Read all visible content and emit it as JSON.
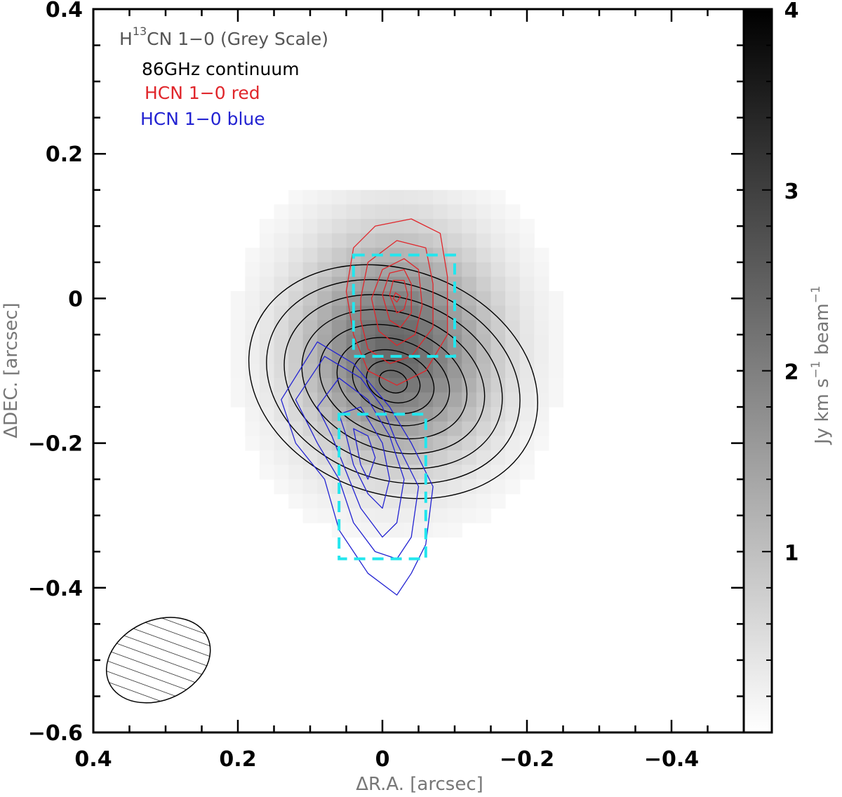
{
  "chart_data": {
    "type": "heatmap",
    "xlabel": "ΔR.A. [arcsec]",
    "ylabel": "ΔDEC. [arcsec]",
    "xlim": [
      0.4,
      -0.5
    ],
    "ylim": [
      -0.6,
      0.4
    ],
    "x_ticks": [
      0.4,
      0.2,
      0,
      -0.2,
      -0.4
    ],
    "x_tick_labels": [
      "0.4",
      "0.2",
      "0",
      "−0.2",
      "−0.4"
    ],
    "y_ticks": [
      0.4,
      0.2,
      0,
      -0.2,
      -0.4,
      -0.6
    ],
    "y_tick_labels": [
      "0.4",
      "0.2",
      "0",
      "−0.2",
      "−0.4",
      "−0.6"
    ],
    "legend": {
      "placement": "top-left",
      "entries": [
        {
          "label_main": "H",
          "label_sup": "13",
          "label_rest": "CN 1−0 (Grey Scale)",
          "color": "#555555"
        },
        {
          "label": "86GHz continuum",
          "color": "#000000"
        },
        {
          "label": "HCN 1−0 red",
          "color": "#e0262b"
        },
        {
          "label": "HCN 1−0 blue",
          "color": "#2323d2"
        }
      ]
    },
    "colorbar": {
      "label_parts": [
        "Jy km s",
        "−1",
        " beam",
        "−1"
      ],
      "range": [
        0,
        4
      ],
      "ticks": [
        1,
        2,
        3,
        4
      ],
      "tick_labels": [
        "1",
        "2",
        "3",
        "4"
      ],
      "colormap": "white-to-black"
    },
    "greyscale_map": {
      "description_units": "Jy km s^-1 beam^-1",
      "peak_position": [
        -0.02,
        -0.07
      ],
      "peak_value": 2.4,
      "sigma_ra": 0.095,
      "sigma_dec": 0.11
    },
    "continuum_contours": {
      "color": "#000000",
      "center": [
        -0.015,
        -0.115
      ],
      "levels": [
        {
          "a": 0.205,
          "b": 0.155,
          "angle_deg": 20
        },
        {
          "a": 0.18,
          "b": 0.135,
          "angle_deg": 20
        },
        {
          "a": 0.155,
          "b": 0.115,
          "angle_deg": 20
        },
        {
          "a": 0.13,
          "b": 0.095,
          "angle_deg": 20
        },
        {
          "a": 0.105,
          "b": 0.075,
          "angle_deg": 20
        },
        {
          "a": 0.08,
          "b": 0.058,
          "angle_deg": 20
        },
        {
          "a": 0.058,
          "b": 0.042,
          "angle_deg": 20
        },
        {
          "a": 0.038,
          "b": 0.028,
          "angle_deg": 20
        },
        {
          "a": 0.02,
          "b": 0.015,
          "angle_deg": 20
        }
      ]
    },
    "hcn_red_contours": {
      "color": "#e0262b",
      "levels": [
        [
          [
            0.05,
            0.01
          ],
          [
            0.04,
            0.07
          ],
          [
            0.01,
            0.1
          ],
          [
            -0.04,
            0.11
          ],
          [
            -0.08,
            0.09
          ],
          [
            -0.09,
            0.03
          ],
          [
            -0.09,
            -0.05
          ],
          [
            -0.06,
            -0.1
          ],
          [
            -0.02,
            -0.12
          ],
          [
            0.02,
            -0.1
          ],
          [
            0.04,
            -0.05
          ]
        ],
        [
          [
            0.03,
            0.0
          ],
          [
            0.02,
            0.05
          ],
          [
            -0.02,
            0.08
          ],
          [
            -0.06,
            0.07
          ],
          [
            -0.07,
            0.02
          ],
          [
            -0.07,
            -0.04
          ],
          [
            -0.04,
            -0.08
          ],
          [
            -0.01,
            -0.09
          ],
          [
            0.02,
            -0.07
          ],
          [
            0.03,
            -0.03
          ]
        ],
        [
          [
            0.015,
            0.0
          ],
          [
            0.0,
            0.04
          ],
          [
            -0.03,
            0.055
          ],
          [
            -0.05,
            0.04
          ],
          [
            -0.055,
            -0.01
          ],
          [
            -0.045,
            -0.05
          ],
          [
            -0.02,
            -0.065
          ],
          [
            0.005,
            -0.045
          ]
        ],
        [
          [
            0.0,
            0.005
          ],
          [
            -0.01,
            0.035
          ],
          [
            -0.03,
            0.04
          ],
          [
            -0.04,
            0.02
          ],
          [
            -0.04,
            -0.02
          ],
          [
            -0.025,
            -0.04
          ],
          [
            -0.01,
            -0.03
          ]
        ],
        [
          [
            -0.01,
            0.005
          ],
          [
            -0.015,
            0.025
          ],
          [
            -0.03,
            0.025
          ],
          [
            -0.035,
            0.005
          ],
          [
            -0.03,
            -0.015
          ],
          [
            -0.02,
            -0.02
          ]
        ],
        [
          [
            -0.015,
            0.0
          ],
          [
            -0.018,
            0.008
          ],
          [
            -0.025,
            0.003
          ],
          [
            -0.02,
            -0.005
          ]
        ]
      ]
    },
    "hcn_blue_contours": {
      "color": "#2323d2",
      "levels": [
        [
          [
            0.14,
            -0.14
          ],
          [
            0.09,
            -0.06
          ],
          [
            0.04,
            -0.09
          ],
          [
            -0.01,
            -0.15
          ],
          [
            -0.04,
            -0.2
          ],
          [
            -0.07,
            -0.26
          ],
          [
            -0.06,
            -0.34
          ],
          [
            -0.04,
            -0.38
          ],
          [
            -0.02,
            -0.41
          ],
          [
            0.02,
            -0.38
          ],
          [
            0.06,
            -0.32
          ],
          [
            0.08,
            -0.25
          ],
          [
            0.12,
            -0.2
          ]
        ],
        [
          [
            0.12,
            -0.14
          ],
          [
            0.08,
            -0.08
          ],
          [
            0.03,
            -0.11
          ],
          [
            0.0,
            -0.15
          ],
          [
            -0.02,
            -0.2
          ],
          [
            -0.05,
            -0.26
          ],
          [
            -0.04,
            -0.33
          ],
          [
            -0.02,
            -0.36
          ],
          [
            0.01,
            -0.35
          ],
          [
            0.04,
            -0.31
          ],
          [
            0.06,
            -0.25
          ],
          [
            0.09,
            -0.2
          ]
        ],
        [
          [
            0.09,
            -0.15
          ],
          [
            0.06,
            -0.11
          ],
          [
            0.02,
            -0.14
          ],
          [
            -0.01,
            -0.19
          ],
          [
            -0.03,
            -0.25
          ],
          [
            -0.02,
            -0.31
          ],
          [
            0.0,
            -0.33
          ],
          [
            0.03,
            -0.29
          ],
          [
            0.05,
            -0.24
          ],
          [
            0.07,
            -0.19
          ]
        ],
        [
          [
            0.06,
            -0.16
          ],
          [
            0.03,
            -0.15
          ],
          [
            0.0,
            -0.2
          ],
          [
            -0.01,
            -0.25
          ],
          [
            0.0,
            -0.29
          ],
          [
            0.02,
            -0.27
          ],
          [
            0.04,
            -0.23
          ],
          [
            0.05,
            -0.19
          ]
        ],
        [
          [
            0.04,
            -0.18
          ],
          [
            0.02,
            -0.19
          ],
          [
            0.01,
            -0.22
          ],
          [
            0.02,
            -0.25
          ],
          [
            0.03,
            -0.23
          ]
        ]
      ]
    },
    "boxes": [
      {
        "x_range": [
          0.04,
          -0.1
        ],
        "y_range": [
          -0.08,
          0.06
        ],
        "color": "#22e6ee"
      },
      {
        "x_range": [
          0.06,
          -0.06
        ],
        "y_range": [
          -0.36,
          -0.16
        ],
        "color": "#22e6ee"
      }
    ],
    "beam": {
      "center": [
        0.31,
        -0.5
      ],
      "a": 0.075,
      "b": 0.055,
      "angle_deg": -25,
      "hatched": true
    },
    "grid": false
  }
}
